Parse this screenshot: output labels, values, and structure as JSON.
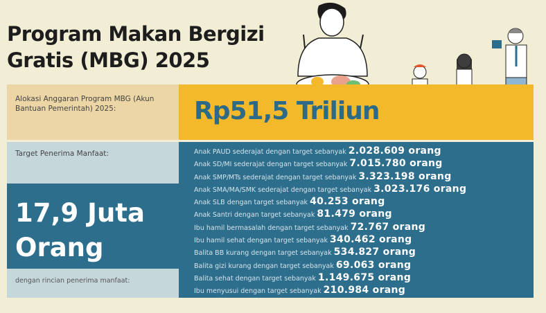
{
  "title": {
    "line1": "Program Makan Bergizi",
    "line2": "Gratis (MBG) 2025"
  },
  "budget": {
    "label": "Alokasi Anggaran Program MBG (Akun Bantuan Pemerintah) 2025:",
    "value": "Rp51,5 Triliun"
  },
  "target": {
    "label": "Target Penerima Manfaat:",
    "value_line1": "17,9 Juta",
    "value_line2": "Orang",
    "detail_label": "dengan rincian penerima manfaat:"
  },
  "recipients": [
    {
      "text": "Anak PAUD sederajat dengan target sebanyak",
      "value": "2.028.609 orang"
    },
    {
      "text": "Anak SD/MI sederajat dengan target sebanyak",
      "value": "7.015.780 orang"
    },
    {
      "text": "Anak SMP/MTs sederajat dengan target sebanyak",
      "value": "3.323.198 orang"
    },
    {
      "text": "Anak SMA/MA/SMK sederajat dengan target sebanyak",
      "value": "3.023.176 orang"
    },
    {
      "text": "Anak SLB dengan target sebanyak",
      "value": "40.253 orang"
    },
    {
      "text": "Anak Santri dengan target sebanyak",
      "value": "81.479 orang"
    },
    {
      "text": "Ibu hamil bermasalah dengan target sebanyak",
      "value": "72.767 orang"
    },
    {
      "text": "Ibu hamil sehat dengan target sebanyak",
      "value": "340.462 orang"
    },
    {
      "text": "Balita BB kurang dengan target sebanyak",
      "value": "534.827 orang"
    },
    {
      "text": "Balita gizi kurang dengan target sebanyak",
      "value": "69.063 orang"
    },
    {
      "text": "Balita sehat dengan target sebanyak",
      "value": "1.149.675 orang"
    },
    {
      "text": "Ibu menyusui dengan target sebanyak",
      "value": "210.984 orang"
    }
  ],
  "colors": {
    "background": "#f1eed5",
    "tan": "#ecd6a5",
    "yellow": "#f4b92b",
    "teal": "#2d6e8d",
    "light_blue": "#c6d7dc"
  }
}
